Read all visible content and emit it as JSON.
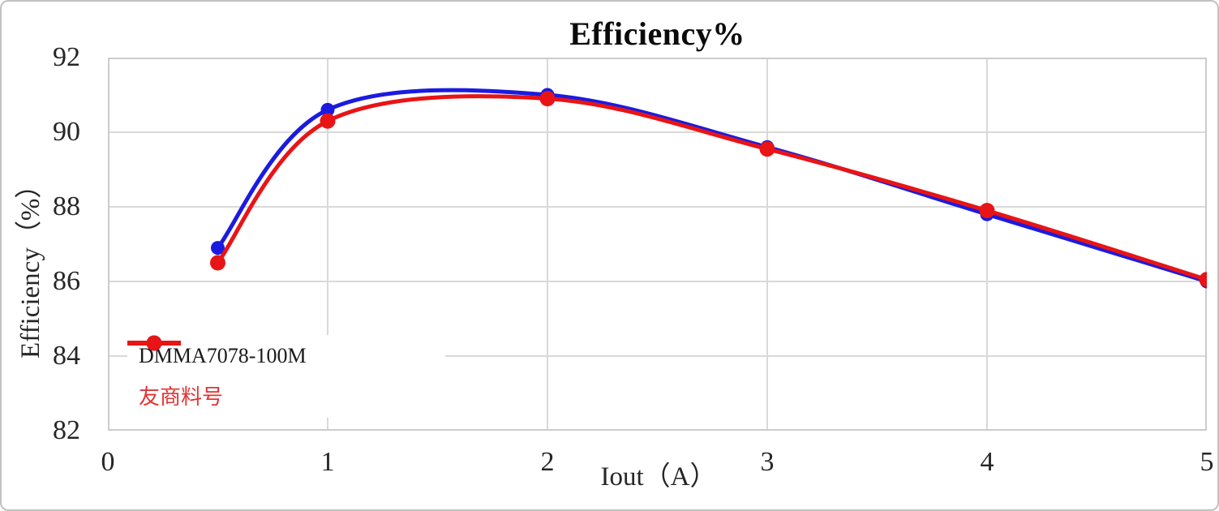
{
  "title": "Efficiency%",
  "axes": {
    "x": {
      "label": "Iout（A）",
      "ticks": [
        "0",
        "1",
        "2",
        "3",
        "4",
        "5"
      ]
    },
    "y": {
      "label": "Efficiency（%）",
      "ticks": [
        "92",
        "90",
        "88",
        "86",
        "84",
        "82"
      ]
    }
  },
  "legend": {
    "items": [
      {
        "label": "DMMA7078-100M",
        "line_color": "#1b1be0",
        "text_color": "#1a1a1a"
      },
      {
        "label": "友商料号",
        "line_color": "#e81416",
        "text_color": "#e23333"
      }
    ]
  },
  "chart_data": {
    "type": "line",
    "title": "Efficiency%",
    "xlabel": "Iout（A）",
    "ylabel": "Efficiency（%）",
    "x": [
      0.5,
      1,
      2,
      3,
      4,
      5
    ],
    "series": [
      {
        "name": "DMMA7078-100M",
        "color": "#1b1be0",
        "values": [
          86.9,
          90.6,
          91.0,
          89.6,
          87.8,
          86.0
        ]
      },
      {
        "name": "友商料号",
        "color": "#e81416",
        "values": [
          86.5,
          90.3,
          90.9,
          89.55,
          87.9,
          86.05
        ]
      }
    ],
    "xlim": [
      0,
      5
    ],
    "ylim": [
      82,
      92
    ],
    "grid": true,
    "smooth": true,
    "legend_position": "inside-bottom-left"
  },
  "colors": {
    "grid": "#d9d9d9",
    "plot_border": "#cccccc",
    "outer_border": "#c2c2c2",
    "background": "#ffffff"
  }
}
